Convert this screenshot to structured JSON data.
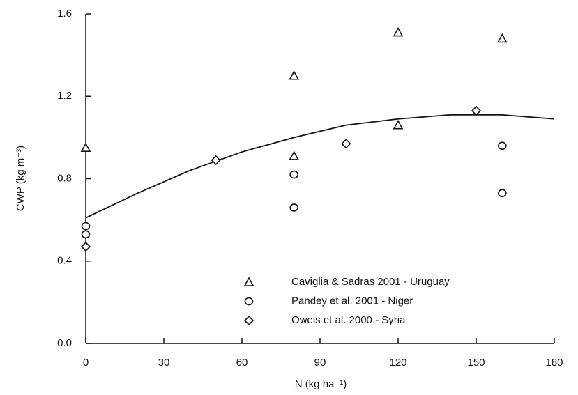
{
  "chart_data": {
    "type": "scatter",
    "xlabel": "N (kg ha⁻¹)",
    "ylabel": "CWP (kg m⁻³)",
    "xlim": [
      0,
      180
    ],
    "xticks": [
      0,
      30,
      60,
      90,
      120,
      150,
      180
    ],
    "ylim": [
      0,
      1.6
    ],
    "yticks": [
      {
        "value": 0,
        "label": "0.0"
      },
      0.4,
      0.8,
      1.2,
      1.6
    ],
    "legend": "lower right",
    "series": [
      {
        "name": "Caviglia & Sadras 2001 - Uruguay",
        "marker": "triangle",
        "color": "#111111",
        "x": [
          0,
          80,
          80,
          120,
          120,
          160
        ],
        "values": [
          0.95,
          1.3,
          0.91,
          1.51,
          1.06,
          1.48
        ]
      },
      {
        "name": "Pandey et al. 2001 - Niger",
        "marker": "circle",
        "color": "#111111",
        "x": [
          0,
          0,
          80,
          80,
          160,
          160
        ],
        "values": [
          0.57,
          0.53,
          0.82,
          0.66,
          0.96,
          0.73
        ]
      },
      {
        "name": "Oweis et al. 2000 - Syria",
        "marker": "diamond",
        "color": "#111111",
        "x": [
          0,
          50,
          100,
          150
        ],
        "values": [
          0.47,
          0.89,
          0.97,
          1.13
        ]
      }
    ],
    "curve": {
      "color": "#111111",
      "x": [
        0,
        20,
        40,
        60,
        80,
        100,
        120,
        140,
        160,
        180
      ],
      "values": [
        0.61,
        0.73,
        0.84,
        0.93,
        1.0,
        1.06,
        1.09,
        1.11,
        1.11,
        1.09
      ]
    }
  }
}
